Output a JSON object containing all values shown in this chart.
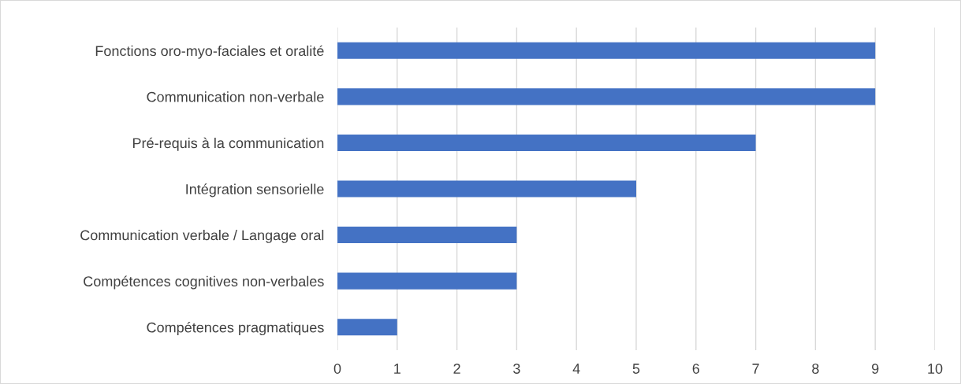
{
  "chart_data": {
    "type": "bar",
    "orientation": "horizontal",
    "categories": [
      "Fonctions oro-myo-faciales et oralité",
      "Communication non-verbale",
      "Pré-requis à la communication",
      "Intégration sensorielle",
      "Communication verbale / Langage oral",
      "Compétences cognitives non-verbales",
      "Compétences pragmatiques"
    ],
    "values": [
      9,
      9,
      7,
      5,
      3,
      3,
      1
    ],
    "color": "#4472c4",
    "xlim": [
      0,
      10
    ],
    "xticks": [
      0,
      1,
      2,
      3,
      4,
      5,
      6,
      7,
      8,
      9,
      10
    ],
    "grid": "x",
    "legend": false
  }
}
